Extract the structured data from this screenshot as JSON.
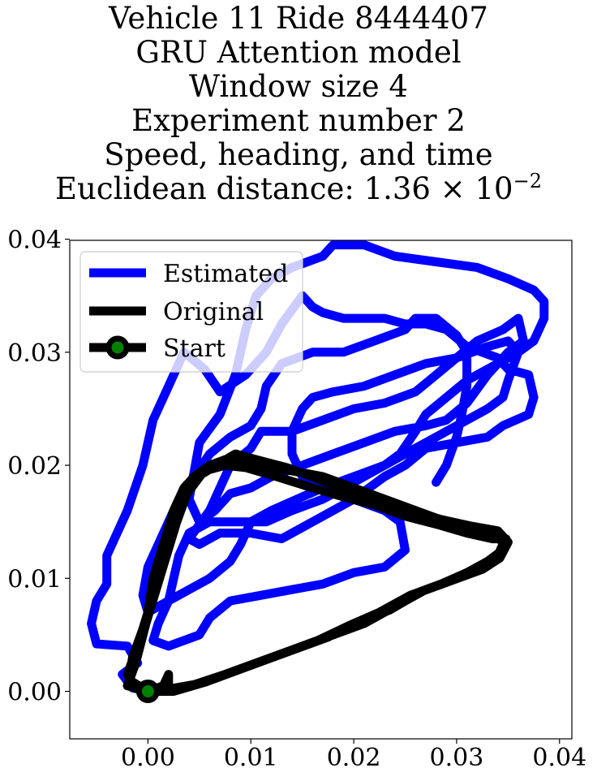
{
  "chart_data": {
    "type": "line",
    "title_lines": [
      "Vehicle 11 Ride 8444407",
      "GRU Attention model",
      "Window size 4",
      "Experiment number 2",
      "Speed, heading, and time"
    ],
    "title_last_prefix": "Euclidean distance: 1.36 × 10",
    "title_last_exponent": "−2",
    "xlabel": "",
    "ylabel": "",
    "xlim": [
      -0.0076,
      0.0412
    ],
    "ylim": [
      -0.0042,
      0.0399
    ],
    "x_ticks": [
      0.0,
      0.01,
      0.02,
      0.03,
      0.04
    ],
    "x_tick_labels": [
      "0.00",
      "0.01",
      "0.02",
      "0.03",
      "0.04"
    ],
    "y_ticks": [
      0.0,
      0.01,
      0.02,
      0.03,
      0.04
    ],
    "y_tick_labels": [
      "0.00",
      "0.01",
      "0.02",
      "0.03",
      "0.04"
    ],
    "grid": false,
    "legend_position": "upper-left",
    "legend": [
      "Estimated",
      "Original",
      "Start"
    ],
    "series": [
      {
        "name": "Estimated",
        "color": "#0000ff",
        "points": [
          [
            0.0,
            0.0
          ],
          [
            -0.0015,
            0.0003
          ],
          [
            -0.0025,
            0.0015
          ],
          [
            -0.001,
            0.0025
          ],
          [
            -0.002,
            0.004
          ],
          [
            -0.005,
            0.0042
          ],
          [
            -0.0055,
            0.006
          ],
          [
            -0.005,
            0.008
          ],
          [
            -0.004,
            0.0095
          ],
          [
            -0.004,
            0.012
          ],
          [
            -0.0035,
            0.013
          ],
          [
            -0.002,
            0.016
          ],
          [
            -0.0005,
            0.02
          ],
          [
            0.0005,
            0.024
          ],
          [
            0.002,
            0.027
          ],
          [
            0.0035,
            0.03
          ],
          [
            0.0055,
            0.0285
          ],
          [
            0.007,
            0.0265
          ],
          [
            0.0095,
            0.028
          ],
          [
            0.0115,
            0.03
          ],
          [
            0.013,
            0.0325
          ],
          [
            0.015,
            0.035
          ],
          [
            0.016,
            0.034
          ],
          [
            0.017,
            0.0335
          ],
          [
            0.019,
            0.033
          ],
          [
            0.021,
            0.033
          ],
          [
            0.023,
            0.033
          ],
          [
            0.025,
            0.0325
          ],
          [
            0.027,
            0.0325
          ],
          [
            0.029,
            0.032
          ],
          [
            0.031,
            0.0305
          ],
          [
            0.034,
            0.0295
          ],
          [
            0.035,
            0.0285
          ],
          [
            0.037,
            0.028
          ],
          [
            0.0375,
            0.026
          ],
          [
            0.037,
            0.0245
          ],
          [
            0.0345,
            0.0235
          ],
          [
            0.033,
            0.0225
          ],
          [
            0.03,
            0.022
          ],
          [
            0.027,
            0.0215
          ],
          [
            0.025,
            0.02
          ],
          [
            0.023,
            0.019
          ],
          [
            0.02,
            0.017
          ],
          [
            0.018,
            0.016
          ],
          [
            0.016,
            0.015
          ],
          [
            0.013,
            0.0135
          ],
          [
            0.01,
            0.014
          ],
          [
            0.007,
            0.014
          ],
          [
            0.005,
            0.013
          ],
          [
            0.004,
            0.0135
          ],
          [
            0.006,
            0.016
          ],
          [
            0.007,
            0.018
          ],
          [
            0.008,
            0.02
          ],
          [
            0.01,
            0.0215
          ],
          [
            0.011,
            0.023
          ],
          [
            0.014,
            0.023
          ],
          [
            0.017,
            0.024
          ],
          [
            0.02,
            0.025
          ],
          [
            0.023,
            0.0255
          ],
          [
            0.026,
            0.0265
          ],
          [
            0.028,
            0.028
          ],
          [
            0.03,
            0.0295
          ],
          [
            0.032,
            0.031
          ],
          [
            0.0345,
            0.032
          ],
          [
            0.036,
            0.033
          ],
          [
            0.0365,
            0.031
          ],
          [
            0.035,
            0.03
          ],
          [
            0.033,
            0.028
          ],
          [
            0.031,
            0.0255
          ],
          [
            0.029,
            0.024
          ],
          [
            0.027,
            0.0235
          ],
          [
            0.024,
            0.023
          ],
          [
            0.021,
            0.022
          ],
          [
            0.018,
            0.021
          ],
          [
            0.015,
            0.02
          ],
          [
            0.012,
            0.019
          ],
          [
            0.01,
            0.018
          ],
          [
            0.008,
            0.0175
          ],
          [
            0.0065,
            0.016
          ],
          [
            0.005,
            0.015
          ],
          [
            0.004,
            0.017
          ],
          [
            0.0045,
            0.0195
          ],
          [
            0.005,
            0.022
          ],
          [
            0.007,
            0.0245
          ],
          [
            0.0085,
            0.028
          ],
          [
            0.0095,
            0.032
          ],
          [
            0.0105,
            0.035
          ],
          [
            0.012,
            0.0365
          ],
          [
            0.014,
            0.0375
          ],
          [
            0.017,
            0.0385
          ],
          [
            0.018,
            0.0395
          ],
          [
            0.021,
            0.0395
          ],
          [
            0.024,
            0.0385
          ],
          [
            0.028,
            0.038
          ],
          [
            0.032,
            0.0375
          ],
          [
            0.035,
            0.0365
          ],
          [
            0.0375,
            0.0355
          ],
          [
            0.0385,
            0.0345
          ],
          [
            0.0385,
            0.033
          ],
          [
            0.0375,
            0.031
          ],
          [
            0.036,
            0.03
          ],
          [
            0.034,
            0.029
          ],
          [
            0.031,
            0.0275
          ],
          [
            0.029,
            0.026
          ],
          [
            0.027,
            0.0245
          ],
          [
            0.026,
            0.023
          ],
          [
            0.0245,
            0.021
          ],
          [
            0.023,
            0.02
          ],
          [
            0.02,
            0.0185
          ],
          [
            0.017,
            0.017
          ],
          [
            0.014,
            0.016
          ],
          [
            0.0115,
            0.015
          ],
          [
            0.0085,
            0.015
          ],
          [
            0.006,
            0.015
          ],
          [
            0.004,
            0.014
          ],
          [
            0.003,
            0.012
          ],
          [
            0.0025,
            0.01
          ],
          [
            0.002,
            0.008
          ],
          [
            0.001,
            0.006
          ],
          [
            0.0005,
            0.0045
          ],
          [
            0.002,
            0.004
          ],
          [
            0.005,
            0.005
          ],
          [
            0.006,
            0.0065
          ],
          [
            0.008,
            0.008
          ],
          [
            0.011,
            0.0085
          ],
          [
            0.014,
            0.009
          ],
          [
            0.017,
            0.0095
          ],
          [
            0.02,
            0.0105
          ],
          [
            0.023,
            0.011
          ],
          [
            0.025,
            0.0125
          ],
          [
            0.0245,
            0.015
          ],
          [
            0.023,
            0.016
          ],
          [
            0.02,
            0.017
          ],
          [
            0.017,
            0.018
          ],
          [
            0.015,
            0.019
          ],
          [
            0.014,
            0.021
          ],
          [
            0.014,
            0.023
          ],
          [
            0.015,
            0.025
          ],
          [
            0.016,
            0.026
          ],
          [
            0.018,
            0.0265
          ],
          [
            0.021,
            0.027
          ],
          [
            0.024,
            0.028
          ],
          [
            0.027,
            0.029
          ],
          [
            0.03,
            0.0295
          ],
          [
            0.033,
            0.0305
          ],
          [
            0.035,
            0.031
          ],
          [
            0.036,
            0.03
          ],
          [
            0.035,
            0.0275
          ],
          [
            0.0345,
            0.026
          ],
          [
            0.033,
            0.025
          ],
          [
            0.031,
            0.024
          ],
          [
            0.029,
            0.023
          ],
          [
            0.027,
            0.022
          ],
          [
            0.025,
            0.021
          ],
          [
            0.023,
            0.02
          ],
          [
            0.02,
            0.019
          ],
          [
            0.017,
            0.018
          ],
          [
            0.0145,
            0.017
          ],
          [
            0.012,
            0.016
          ],
          [
            0.01,
            0.015
          ],
          [
            0.009,
            0.013
          ],
          [
            0.008,
            0.0115
          ],
          [
            0.006,
            0.01
          ],
          [
            0.004,
            0.009
          ],
          [
            0.002,
            0.008
          ],
          [
            0.0,
            0.007
          ],
          [
            -0.0005,
            0.0085
          ],
          [
            0.0,
            0.011
          ],
          [
            0.001,
            0.013
          ],
          [
            0.002,
            0.015
          ],
          [
            0.003,
            0.017
          ],
          [
            0.0045,
            0.019
          ],
          [
            0.006,
            0.021
          ],
          [
            0.008,
            0.0225
          ],
          [
            0.01,
            0.0235
          ],
          [
            0.011,
            0.025
          ],
          [
            0.0115,
            0.027
          ],
          [
            0.013,
            0.029
          ],
          [
            0.016,
            0.03
          ],
          [
            0.019,
            0.03
          ],
          [
            0.022,
            0.031
          ],
          [
            0.025,
            0.032
          ],
          [
            0.026,
            0.033
          ],
          [
            0.028,
            0.033
          ],
          [
            0.03,
            0.0315
          ],
          [
            0.031,
            0.03
          ],
          [
            0.031,
            0.027
          ],
          [
            0.0305,
            0.0245
          ],
          [
            0.03,
            0.0225
          ],
          [
            0.029,
            0.02
          ],
          [
            0.028,
            0.0185
          ]
        ]
      },
      {
        "name": "Original",
        "color": "#000000",
        "points": [
          [
            0.0,
            0.0
          ],
          [
            -0.0015,
            0.0005
          ],
          [
            -0.002,
            0.0015
          ],
          [
            -0.001,
            0.004
          ],
          [
            0.0,
            0.007
          ],
          [
            0.0005,
            0.01
          ],
          [
            0.0015,
            0.013
          ],
          [
            0.0025,
            0.016
          ],
          [
            0.0035,
            0.018
          ],
          [
            0.0045,
            0.019
          ],
          [
            0.006,
            0.02
          ],
          [
            0.0075,
            0.0205
          ],
          [
            0.0085,
            0.0205
          ],
          [
            0.011,
            0.02
          ],
          [
            0.014,
            0.0195
          ],
          [
            0.017,
            0.019
          ],
          [
            0.02,
            0.018
          ],
          [
            0.023,
            0.017
          ],
          [
            0.026,
            0.016
          ],
          [
            0.029,
            0.015
          ],
          [
            0.032,
            0.0145
          ],
          [
            0.034,
            0.014
          ],
          [
            0.0345,
            0.013
          ],
          [
            0.034,
            0.012
          ],
          [
            0.032,
            0.011
          ],
          [
            0.03,
            0.01
          ],
          [
            0.027,
            0.009
          ],
          [
            0.024,
            0.0075
          ],
          [
            0.021,
            0.006
          ],
          [
            0.018,
            0.005
          ],
          [
            0.015,
            0.004
          ],
          [
            0.012,
            0.003
          ],
          [
            0.009,
            0.002
          ],
          [
            0.006,
            0.001
          ],
          [
            0.003,
            0.0002
          ],
          [
            0.001,
            0.0001
          ],
          [
            0.0,
            0.0
          ],
          [
            -0.0018,
            0.001
          ],
          [
            -0.0015,
            0.003
          ],
          [
            -0.0005,
            0.0055
          ],
          [
            0.0005,
            0.0085
          ],
          [
            0.0015,
            0.0115
          ],
          [
            0.002,
            0.014
          ],
          [
            0.003,
            0.0165
          ],
          [
            0.004,
            0.0185
          ],
          [
            0.0055,
            0.0195
          ],
          [
            0.0075,
            0.02
          ],
          [
            0.0095,
            0.0198
          ],
          [
            0.0125,
            0.019
          ],
          [
            0.016,
            0.018
          ],
          [
            0.019,
            0.0172
          ],
          [
            0.022,
            0.0165
          ],
          [
            0.025,
            0.0155
          ],
          [
            0.028,
            0.0148
          ],
          [
            0.031,
            0.014
          ],
          [
            0.0335,
            0.0135
          ],
          [
            0.0348,
            0.0135
          ],
          [
            0.0345,
            0.0125
          ],
          [
            0.033,
            0.0115
          ],
          [
            0.031,
            0.0105
          ],
          [
            0.0285,
            0.0095
          ],
          [
            0.0255,
            0.0085
          ],
          [
            0.0225,
            0.007
          ],
          [
            0.0195,
            0.0058
          ],
          [
            0.0165,
            0.0045
          ],
          [
            0.0135,
            0.0035
          ],
          [
            0.0105,
            0.0025
          ],
          [
            0.0075,
            0.0015
          ],
          [
            0.0045,
            0.0006
          ],
          [
            0.002,
            0.0002
          ],
          [
            0.002,
            0.0015
          ],
          [
            0.0015,
            0.0005
          ],
          [
            0.0,
            0.0
          ],
          [
            -0.002,
            0.0005
          ],
          [
            -0.0012,
            0.0025
          ],
          [
            -0.0002,
            0.006
          ],
          [
            0.0008,
            0.009
          ],
          [
            0.0018,
            0.012
          ],
          [
            0.0028,
            0.015
          ],
          [
            0.0038,
            0.0175
          ],
          [
            0.0052,
            0.0192
          ],
          [
            0.007,
            0.0202
          ],
          [
            0.0085,
            0.021
          ],
          [
            0.0105,
            0.0205
          ],
          [
            0.0135,
            0.0198
          ],
          [
            0.0165,
            0.0188
          ],
          [
            0.0195,
            0.0178
          ],
          [
            0.0225,
            0.0168
          ],
          [
            0.0255,
            0.016
          ],
          [
            0.0285,
            0.0152
          ],
          [
            0.0315,
            0.0146
          ],
          [
            0.034,
            0.0142
          ],
          [
            0.035,
            0.0132
          ],
          [
            0.0342,
            0.0118
          ],
          [
            0.0325,
            0.0108
          ],
          [
            0.0295,
            0.0098
          ],
          [
            0.0265,
            0.0088
          ],
          [
            0.0235,
            0.0072
          ],
          [
            0.0205,
            0.0062
          ],
          [
            0.0175,
            0.0048
          ],
          [
            0.0145,
            0.0038
          ],
          [
            0.0115,
            0.0028
          ],
          [
            0.0085,
            0.0018
          ],
          [
            0.0055,
            0.0008
          ],
          [
            0.0025,
            0.0
          ],
          [
            0.0,
            0.0
          ]
        ]
      },
      {
        "name": "Start",
        "color": "#000000",
        "marker_color": "#008000",
        "points": [
          [
            0.0,
            0.0
          ]
        ]
      }
    ]
  }
}
